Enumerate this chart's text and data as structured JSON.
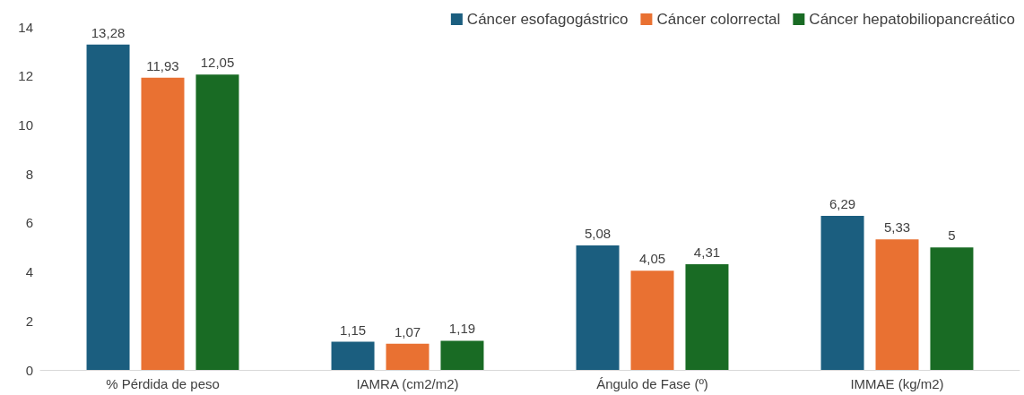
{
  "chart_data": {
    "type": "bar",
    "categories": [
      "% Pérdida de peso",
      "IAMRA (cm2/m2)",
      "Ángulo de Fase (º)",
      "IMMAE (kg/m2)"
    ],
    "series": [
      {
        "name": "Cáncer esofagogástrico",
        "color": "#1b5e7f",
        "values": [
          13.28,
          1.15,
          5.08,
          6.29
        ],
        "value_labels": [
          "13,28",
          "1,15",
          "5,08",
          "6,29"
        ]
      },
      {
        "name": "Cáncer colorrectal",
        "color": "#e97132",
        "values": [
          11.93,
          1.07,
          4.05,
          5.33
        ],
        "value_labels": [
          "11,93",
          "1,07",
          "4,05",
          "5,33"
        ]
      },
      {
        "name": "Cáncer hepatobiliopancreático",
        "color": "#196b24",
        "values": [
          12.05,
          1.19,
          4.31,
          5
        ],
        "value_labels": [
          "12,05",
          "1,19",
          "4,31",
          "5"
        ]
      }
    ],
    "ylim": [
      0,
      14
    ],
    "yticks": [
      0,
      2,
      4,
      6,
      8,
      10,
      12,
      14
    ],
    "grid": false,
    "legend": "top right"
  }
}
